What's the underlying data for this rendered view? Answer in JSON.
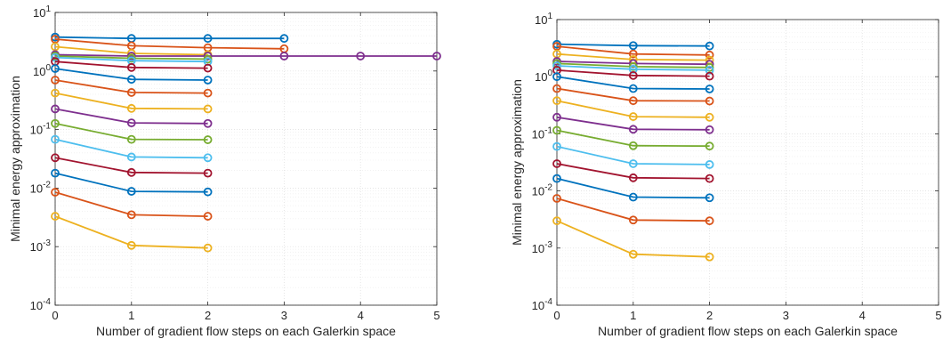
{
  "chart_data": [
    {
      "type": "line",
      "xlabel": "Number of gradient flow steps on each Galerkin space",
      "ylabel": "Minimal energy approximation",
      "xlim": [
        0,
        5
      ],
      "ylim": [
        0.0001,
        10
      ],
      "yscale": "log",
      "grid": true,
      "minor_grid": true,
      "x_ticks": [
        "0",
        "1",
        "2",
        "3",
        "4",
        "5"
      ],
      "y_ticks": [
        {
          "base": "10",
          "exp": "-4"
        },
        {
          "base": "10",
          "exp": "-3"
        },
        {
          "base": "10",
          "exp": "-2"
        },
        {
          "base": "10",
          "exp": "-1"
        },
        {
          "base": "10",
          "exp": "0"
        },
        {
          "base": "10",
          "exp": "1"
        }
      ],
      "series": [
        {
          "color": "#0072BD",
          "x": [
            0,
            1,
            2,
            3
          ],
          "values": [
            3.8,
            3.6,
            3.6,
            3.6
          ]
        },
        {
          "color": "#D95319",
          "x": [
            0,
            1,
            2,
            3
          ],
          "values": [
            3.5,
            2.7,
            2.5,
            2.4
          ]
        },
        {
          "color": "#EDB120",
          "x": [
            0,
            1,
            2
          ],
          "values": [
            2.6,
            2.0,
            1.9
          ]
        },
        {
          "color": "#7E2F8E",
          "x": [
            0,
            1,
            2,
            3,
            4,
            5
          ],
          "values": [
            1.9,
            1.8,
            1.8,
            1.8,
            1.8,
            1.8
          ]
        },
        {
          "color": "#77AC30",
          "x": [
            0,
            1,
            2
          ],
          "values": [
            1.8,
            1.65,
            1.6
          ]
        },
        {
          "color": "#4DBEEE",
          "x": [
            0,
            1,
            2
          ],
          "values": [
            1.7,
            1.5,
            1.45
          ]
        },
        {
          "color": "#A2142F",
          "x": [
            0,
            1,
            2
          ],
          "values": [
            1.45,
            1.15,
            1.12
          ]
        },
        {
          "color": "#0072BD",
          "x": [
            0,
            1,
            2
          ],
          "values": [
            1.1,
            0.72,
            0.7
          ]
        },
        {
          "color": "#D95319",
          "x": [
            0,
            1,
            2
          ],
          "values": [
            0.7,
            0.43,
            0.42
          ]
        },
        {
          "color": "#EDB120",
          "x": [
            0,
            1,
            2
          ],
          "values": [
            0.42,
            0.23,
            0.225
          ]
        },
        {
          "color": "#7E2F8E",
          "x": [
            0,
            1,
            2
          ],
          "values": [
            0.225,
            0.13,
            0.127
          ]
        },
        {
          "color": "#77AC30",
          "x": [
            0,
            1,
            2
          ],
          "values": [
            0.127,
            0.068,
            0.067
          ]
        },
        {
          "color": "#4DBEEE",
          "x": [
            0,
            1,
            2
          ],
          "values": [
            0.068,
            0.034,
            0.033
          ]
        },
        {
          "color": "#A2142F",
          "x": [
            0,
            1,
            2
          ],
          "values": [
            0.033,
            0.0185,
            0.018
          ]
        },
        {
          "color": "#0072BD",
          "x": [
            0,
            1,
            2
          ],
          "values": [
            0.018,
            0.0088,
            0.0086
          ]
        },
        {
          "color": "#D95319",
          "x": [
            0,
            1,
            2
          ],
          "values": [
            0.0085,
            0.0035,
            0.0033
          ]
        },
        {
          "color": "#EDB120",
          "x": [
            0,
            1,
            2
          ],
          "values": [
            0.0033,
            0.00105,
            0.00095
          ]
        }
      ]
    },
    {
      "type": "line",
      "xlabel": "Number of gradient flow steps on each Galerkin space",
      "ylabel": "Minimal energy approximation",
      "xlim": [
        0,
        5
      ],
      "ylim": [
        0.0001,
        10
      ],
      "yscale": "log",
      "grid": true,
      "minor_grid": true,
      "x_ticks": [
        "0",
        "1",
        "2",
        "3",
        "4",
        "5"
      ],
      "y_ticks": [
        {
          "base": "10",
          "exp": "-4"
        },
        {
          "base": "10",
          "exp": "-3"
        },
        {
          "base": "10",
          "exp": "-2"
        },
        {
          "base": "10",
          "exp": "-1"
        },
        {
          "base": "10",
          "exp": "0"
        },
        {
          "base": "10",
          "exp": "1"
        }
      ],
      "series": [
        {
          "color": "#0072BD",
          "x": [
            0,
            1,
            2
          ],
          "values": [
            3.7,
            3.5,
            3.45
          ]
        },
        {
          "color": "#D95319",
          "x": [
            0,
            1,
            2
          ],
          "values": [
            3.4,
            2.5,
            2.4
          ]
        },
        {
          "color": "#EDB120",
          "x": [
            0,
            1,
            2
          ],
          "values": [
            2.5,
            2.0,
            1.95
          ]
        },
        {
          "color": "#7E2F8E",
          "x": [
            0,
            1,
            2
          ],
          "values": [
            1.85,
            1.7,
            1.65
          ]
        },
        {
          "color": "#77AC30",
          "x": [
            0,
            1,
            2
          ],
          "values": [
            1.7,
            1.5,
            1.45
          ]
        },
        {
          "color": "#4DBEEE",
          "x": [
            0,
            1,
            2
          ],
          "values": [
            1.55,
            1.35,
            1.3
          ]
        },
        {
          "color": "#A2142F",
          "x": [
            0,
            1,
            2
          ],
          "values": [
            1.3,
            1.05,
            1.02
          ]
        },
        {
          "color": "#0072BD",
          "x": [
            0,
            1,
            2
          ],
          "values": [
            1.0,
            0.62,
            0.61
          ]
        },
        {
          "color": "#D95319",
          "x": [
            0,
            1,
            2
          ],
          "values": [
            0.62,
            0.38,
            0.375
          ]
        },
        {
          "color": "#EDB120",
          "x": [
            0,
            1,
            2
          ],
          "values": [
            0.38,
            0.2,
            0.195
          ]
        },
        {
          "color": "#7E2F8E",
          "x": [
            0,
            1,
            2
          ],
          "values": [
            0.195,
            0.12,
            0.118
          ]
        },
        {
          "color": "#77AC30",
          "x": [
            0,
            1,
            2
          ],
          "values": [
            0.115,
            0.062,
            0.061
          ]
        },
        {
          "color": "#4DBEEE",
          "x": [
            0,
            1,
            2
          ],
          "values": [
            0.06,
            0.03,
            0.029
          ]
        },
        {
          "color": "#A2142F",
          "x": [
            0,
            1,
            2
          ],
          "values": [
            0.03,
            0.017,
            0.0165
          ]
        },
        {
          "color": "#0072BD",
          "x": [
            0,
            1,
            2
          ],
          "values": [
            0.0165,
            0.0078,
            0.0076
          ]
        },
        {
          "color": "#D95319",
          "x": [
            0,
            1,
            2
          ],
          "values": [
            0.0074,
            0.0031,
            0.003
          ]
        },
        {
          "color": "#EDB120",
          "x": [
            0,
            1,
            2
          ],
          "values": [
            0.003,
            0.00078,
            0.0007
          ]
        }
      ]
    }
  ]
}
